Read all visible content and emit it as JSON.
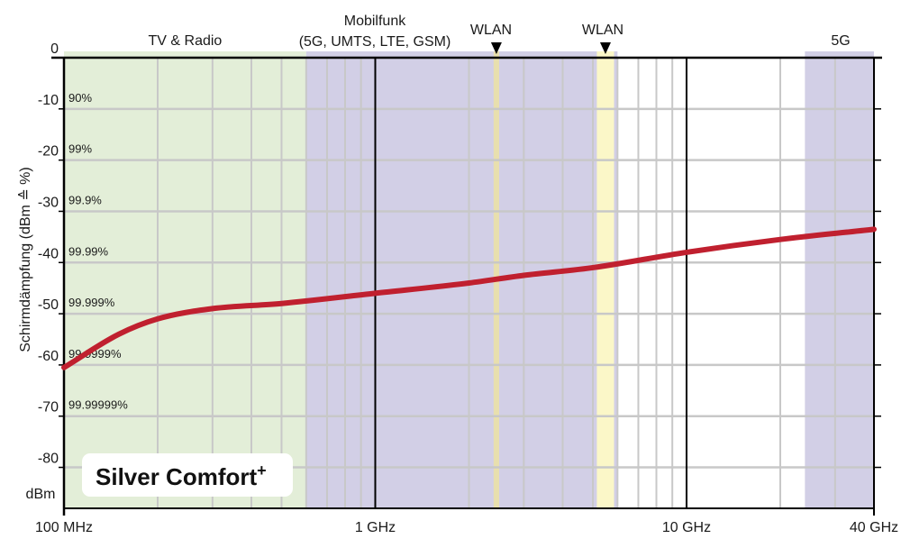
{
  "chart_data": {
    "type": "line",
    "x_scale": "log",
    "xlim_hz": [
      100000000,
      40000000000
    ],
    "ylim": [
      -88,
      0
    ],
    "x_ticks": [
      {
        "value": 100000000,
        "label": "100 MHz"
      },
      {
        "value": 1000000000,
        "label": "1 GHz"
      },
      {
        "value": 10000000000,
        "label": "10 GHz"
      },
      {
        "value": 40000000000,
        "label": "40 GHz"
      }
    ],
    "y_ticks": [
      {
        "value": 0,
        "label": "0",
        "pct": ""
      },
      {
        "value": -10,
        "label": "-10",
        "pct": "90%"
      },
      {
        "value": -20,
        "label": "-20",
        "pct": "99%"
      },
      {
        "value": -30,
        "label": "-30",
        "pct": "99.9%"
      },
      {
        "value": -40,
        "label": "-40",
        "pct": "99.99%"
      },
      {
        "value": -50,
        "label": "-50",
        "pct": "99.999%"
      },
      {
        "value": -60,
        "label": "-60",
        "pct": "99.9999%"
      },
      {
        "value": -70,
        "label": "-70",
        "pct": "99.99999%"
      },
      {
        "value": -80,
        "label": "-80",
        "pct": ""
      }
    ],
    "y_unit_label": "dBm",
    "ylabel": "Schirmdämpfung (dBm ≙ %)",
    "grid": true,
    "bands": [
      {
        "id": "tv-radio",
        "from_hz": 100000000,
        "to_hz": 600000000,
        "color": "#e3eed8",
        "labels": [
          "TV & Radio"
        ]
      },
      {
        "id": "mobilfunk",
        "from_hz": 600000000,
        "to_hz": 6000000000,
        "color": "#d2cfe6",
        "labels": [
          "Mobilfunk",
          "(5G, UMTS, LTE, GSM)"
        ]
      },
      {
        "id": "wlan-1",
        "from_hz": 2400000000,
        "to_hz": 2500000000,
        "color": "#e8dfae",
        "labels": [
          "WLAN"
        ],
        "marker": true
      },
      {
        "id": "wlan-2",
        "from_hz": 5150000000,
        "to_hz": 5850000000,
        "color": "#fbf7c8",
        "labels": [
          "WLAN"
        ],
        "marker": true
      },
      {
        "id": "5g-high",
        "from_hz": 24000000000,
        "to_hz": 40000000000,
        "color": "#d2cfe6",
        "labels": [
          "5G"
        ]
      }
    ],
    "series": [
      {
        "color": "#c0202f",
        "points": [
          {
            "x": 100000000,
            "y": -60.5
          },
          {
            "x": 150000000,
            "y": -54
          },
          {
            "x": 200000000,
            "y": -51
          },
          {
            "x": 300000000,
            "y": -49
          },
          {
            "x": 500000000,
            "y": -48
          },
          {
            "x": 1000000000,
            "y": -46
          },
          {
            "x": 2000000000,
            "y": -44
          },
          {
            "x": 3000000000,
            "y": -42.5
          },
          {
            "x": 5000000000,
            "y": -41
          },
          {
            "x": 10000000000,
            "y": -38
          },
          {
            "x": 20000000000,
            "y": -35.5
          },
          {
            "x": 40000000000,
            "y": -33.5
          }
        ]
      }
    ],
    "brand": {
      "text": "Silver Comfort",
      "superscript": "+"
    }
  },
  "colors": {
    "curve": "#c0202f",
    "grid_minor": "#c8c8c8",
    "grid_major": "#000000",
    "frame": "#000000"
  }
}
